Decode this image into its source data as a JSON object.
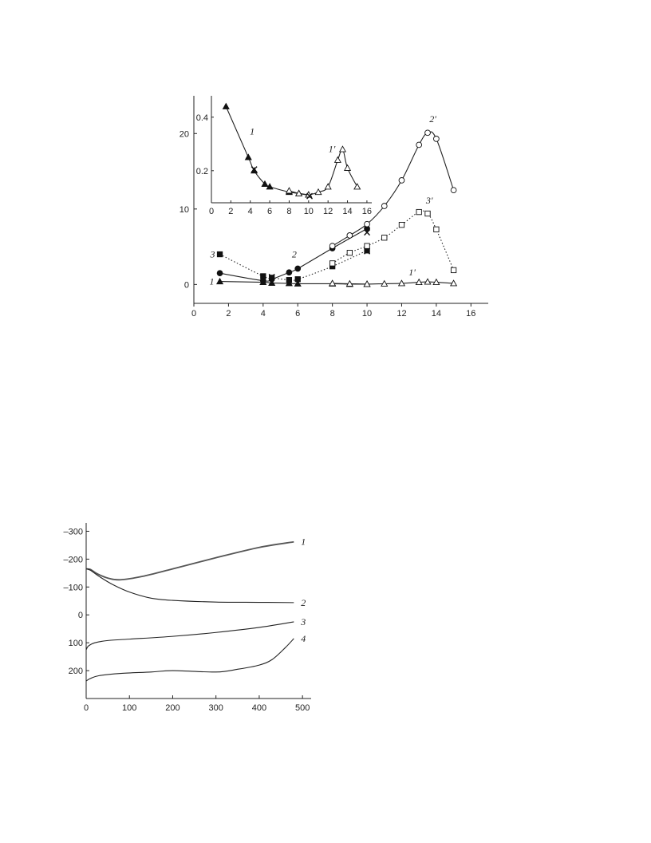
{
  "chart_data": [
    {
      "type": "line",
      "title": "",
      "xlabel": "",
      "ylabel": "",
      "xlim": [
        0,
        17
      ],
      "ylim": [
        -2.5,
        25
      ],
      "x_ticks": [
        0,
        2,
        4,
        6,
        8,
        10,
        12,
        14,
        16
      ],
      "y_ticks": [
        0,
        10,
        20
      ],
      "series": [
        {
          "name": "1",
          "marker": "filled-triangle",
          "line": "solid",
          "x": [
            1.5,
            4,
            4.5,
            5.5,
            6,
            8,
            9,
            10
          ],
          "y": [
            0.4,
            0.3,
            0.2,
            0.15,
            0.1,
            0.1,
            0.05,
            0.05
          ]
        },
        {
          "name": "1'",
          "marker": "open-triangle",
          "line": "solid",
          "x": [
            8,
            9,
            10,
            11,
            12,
            13,
            13.5,
            14,
            15
          ],
          "y": [
            0.15,
            0.1,
            0.05,
            0.1,
            0.15,
            0.3,
            0.35,
            0.3,
            0.15
          ]
        },
        {
          "name": "2",
          "marker": "filled-circle",
          "line": "solid",
          "x": [
            1.5,
            4,
            4.5,
            5.5,
            6,
            8,
            10
          ],
          "y": [
            1.5,
            0.5,
            0.7,
            1.6,
            2.1,
            4.8,
            7.4
          ]
        },
        {
          "name": "2'",
          "marker": "open-circle",
          "line": "solid",
          "x": [
            8,
            9,
            10,
            11,
            12,
            13,
            13.5,
            14,
            15
          ],
          "y": [
            5.1,
            6.5,
            8.0,
            10.4,
            13.8,
            18.5,
            20.1,
            19.3,
            12.5
          ]
        },
        {
          "name": "3",
          "marker": "filled-square",
          "line": "dotted",
          "x": [
            1.5,
            4,
            4.5,
            5.5,
            6,
            8,
            10
          ],
          "y": [
            4.0,
            1.1,
            0.9,
            0.6,
            0.7,
            2.4,
            4.5
          ]
        },
        {
          "name": "3'",
          "marker": "open-square",
          "line": "dotted",
          "x": [
            8,
            9,
            10,
            11,
            12,
            13,
            13.5,
            14,
            15
          ],
          "y": [
            2.8,
            4.2,
            5.1,
            6.2,
            7.9,
            9.6,
            9.4,
            7.3,
            1.9
          ]
        },
        {
          "name": "",
          "marker": "cross",
          "line": "none",
          "x": [
            4.5,
            10
          ],
          "y": [
            1.0,
            4.4
          ]
        },
        {
          "name": "",
          "marker": "cross",
          "line": "none",
          "x": [
            10
          ],
          "y": [
            6.9
          ]
        }
      ],
      "inset": {
        "xlim": [
          0,
          16.5
        ],
        "ylim": [
          0.08,
          0.48
        ],
        "x_ticks": [
          0,
          2,
          4,
          6,
          8,
          10,
          12,
          14,
          16
        ],
        "y_ticks": [
          0.2,
          0.4
        ],
        "series": [
          {
            "name": "1",
            "marker": "filled-triangle",
            "line": "solid",
            "x": [
              1.5,
              3.8,
              4.4,
              5.5,
              6,
              8,
              9,
              10
            ],
            "y": [
              0.44,
              0.25,
              0.2,
              0.15,
              0.14,
              0.12,
              0.115,
              0.11
            ]
          },
          {
            "name": "1'",
            "marker": "open-triangle",
            "line": "solid",
            "x": [
              8,
              9,
              10,
              11,
              12,
              13,
              13.5,
              14,
              15
            ],
            "y": [
              0.125,
              0.115,
              0.11,
              0.12,
              0.14,
              0.24,
              0.28,
              0.21,
              0.14
            ]
          },
          {
            "name": "",
            "marker": "cross",
            "line": "none",
            "x": [
              4.4,
              10.1
            ],
            "y": [
              0.205,
              0.105
            ]
          }
        ]
      }
    },
    {
      "type": "line",
      "title": "",
      "xlabel": "",
      "ylabel": "",
      "xlim": [
        0,
        520
      ],
      "ylim": [
        300,
        -330
      ],
      "x_ticks": [
        0,
        100,
        200,
        300,
        400,
        500
      ],
      "y_ticks": [
        -300,
        -200,
        -100,
        0,
        100,
        200
      ],
      "y_tick_labels": [
        "–300",
        "–200",
        "–100",
        "0",
        "100",
        "200"
      ],
      "series": [
        {
          "name": "1",
          "color": "#555555",
          "x": [
            0,
            10,
            25,
            50,
            80,
            130,
            200,
            300,
            400,
            480
          ],
          "y": [
            -165,
            -163,
            -148,
            -132,
            -126,
            -138,
            -165,
            -205,
            -242,
            -262
          ]
        },
        {
          "name": "2",
          "color": "#222222",
          "x": [
            0,
            10,
            30,
            60,
            100,
            150,
            200,
            300,
            400,
            480
          ],
          "y": [
            -165,
            -160,
            -138,
            -110,
            -82,
            -60,
            -52,
            -46,
            -45,
            -44
          ]
        },
        {
          "name": "3",
          "color": "#222222",
          "x": [
            0,
            5,
            20,
            50,
            100,
            200,
            300,
            400,
            480
          ],
          "y": [
            125,
            112,
            100,
            92,
            87,
            77,
            63,
            45,
            25
          ]
        },
        {
          "name": "4",
          "color": "#222222",
          "x": [
            0,
            10,
            30,
            80,
            150,
            200,
            300,
            350,
            400,
            430,
            460,
            480
          ],
          "y": [
            237,
            228,
            218,
            210,
            205,
            200,
            205,
            195,
            180,
            160,
            118,
            85
          ]
        }
      ]
    }
  ]
}
